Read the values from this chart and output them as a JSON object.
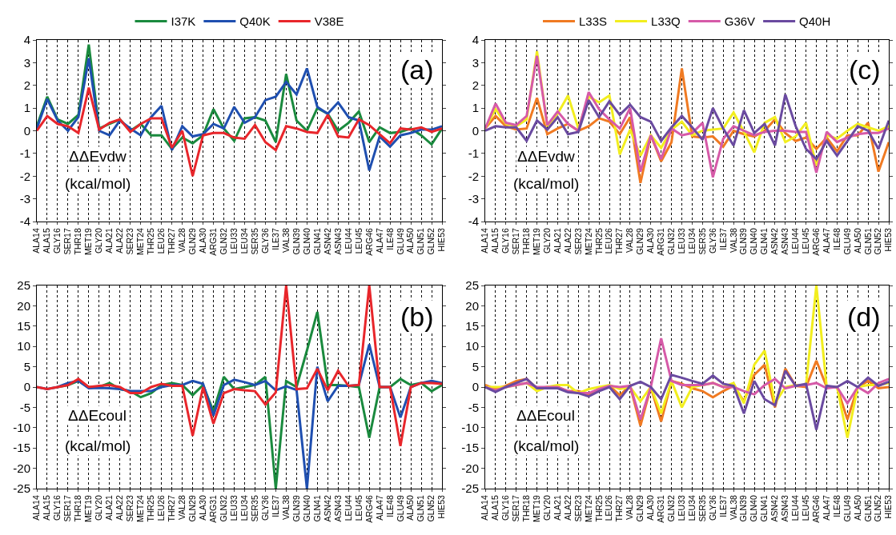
{
  "chart_data": [
    {
      "type": "line",
      "categories": [
        "ALA14",
        "ALA15",
        "GLY16",
        "SER17",
        "THR18",
        "MET19",
        "GLY20",
        "ALA21",
        "ALA22",
        "SER23",
        "MET24",
        "THR25",
        "LEU26",
        "THR27",
        "VAL28",
        "GLN29",
        "ALA30",
        "ARG31",
        "GLN32",
        "LEU33",
        "LEU34",
        "SER35",
        "GLY36",
        "ILE37",
        "VAL38",
        "GLN39",
        "GLN40",
        "GLN41",
        "ASN42",
        "ASN43",
        "LEU44",
        "LEU45",
        "ARG46",
        "ALA47",
        "ILE48",
        "GLU49",
        "ALA50",
        "GLN51",
        "GLN52",
        "HIE53"
      ],
      "ylim": [
        -4,
        4
      ],
      "yticks": [
        -4,
        -3,
        -2,
        -1,
        0,
        1,
        2,
        3,
        4
      ],
      "grid": "x",
      "legend": "top",
      "marker": "none",
      "line_style": "solid",
      "annotations": [
        "(a)",
        "ΔΔEvdw",
        "(kcal/mol)"
      ],
      "series": [
        {
          "name": "I37K",
          "color": "#1a8a3e",
          "values": [
            0.2,
            1.5,
            0.5,
            0.3,
            0.7,
            3.8,
            0.1,
            0.3,
            0.5,
            0.0,
            0.3,
            -0.2,
            -0.2,
            -0.8,
            -0.3,
            -0.55,
            -0.2,
            0.95,
            0.1,
            -0.45,
            0.55,
            0.6,
            0.45,
            -0.5,
            2.5,
            0.45,
            0.0,
            1.0,
            0.75,
            0.0,
            0.35,
            0.85,
            -0.5,
            0.15,
            -0.1,
            -0.05,
            0.1,
            -0.2,
            -0.6,
            0.1
          ]
        },
        {
          "name": "Q40K",
          "color": "#1f4fb0",
          "values": [
            0.1,
            1.4,
            0.45,
            0.0,
            0.6,
            3.2,
            0.0,
            -0.2,
            0.45,
            0.1,
            -0.2,
            0.6,
            1.1,
            -0.85,
            0.2,
            -0.25,
            -0.15,
            0.3,
            0.1,
            1.05,
            0.35,
            0.6,
            1.35,
            1.5,
            2.15,
            1.6,
            2.75,
            1.05,
            0.75,
            1.25,
            0.6,
            0.45,
            -1.75,
            -0.25,
            -0.7,
            -0.2,
            -0.1,
            0.05,
            0.05,
            0.2
          ]
        },
        {
          "name": "V38E",
          "color": "#e8262b",
          "values": [
            0.0,
            0.65,
            0.3,
            0.2,
            -0.1,
            1.9,
            0.05,
            0.35,
            0.5,
            -0.05,
            0.3,
            0.55,
            0.55,
            -0.75,
            0.0,
            -2.0,
            -0.2,
            -0.1,
            -0.1,
            -0.3,
            -0.35,
            0.25,
            -0.5,
            -0.85,
            0.2,
            0.1,
            -0.05,
            -0.1,
            0.7,
            -0.25,
            -0.3,
            0.5,
            0.25,
            -0.15,
            -0.55,
            0.1,
            0.05,
            0.15,
            -0.05,
            0.1
          ]
        }
      ]
    },
    {
      "type": "line",
      "categories": [
        "ALA14",
        "ALA15",
        "GLY16",
        "SER17",
        "THR18",
        "MET19",
        "GLY20",
        "ALA21",
        "ALA22",
        "SER23",
        "MET24",
        "THR25",
        "LEU26",
        "THR27",
        "VAL28",
        "GLN29",
        "ALA30",
        "ARG31",
        "GLN32",
        "LEU33",
        "LEU34",
        "SER35",
        "GLY36",
        "ILE37",
        "VAL38",
        "GLN39",
        "GLN40",
        "GLN41",
        "ASN42",
        "ASN43",
        "LEU44",
        "LEU45",
        "ARG46",
        "ALA47",
        "ILE48",
        "GLU49",
        "ALA50",
        "GLN51",
        "GLN52",
        "HIE53"
      ],
      "ylim": [
        -25,
        25
      ],
      "yticks": [
        -25,
        -20,
        -15,
        -10,
        -5,
        0,
        5,
        10,
        15,
        20,
        25
      ],
      "grid": "x",
      "marker": "none",
      "line_style": "solid",
      "annotations": [
        "(b)",
        "ΔΔEcoul",
        "(kcal/mol)"
      ],
      "series": [
        {
          "color": "#1a8a3e",
          "values": [
            null,
            null,
            0,
            0.5,
            1.5,
            0,
            0,
            1,
            -0.5,
            -1,
            -2.5,
            -1.5,
            0.5,
            1,
            0.5,
            -2,
            0.5,
            -6,
            2.5,
            -0.5,
            0,
            0.5,
            2.5,
            -25,
            1.5,
            0,
            9,
            18.5,
            0.5,
            0.5,
            0.3,
            0,
            -12.5,
            0,
            0,
            2,
            0.5,
            1,
            -1,
            0.5
          ]
        },
        {
          "color": "#1f4fb0",
          "values": [
            0,
            -0.5,
            0,
            1,
            1.5,
            -0.3,
            -0.2,
            -0.3,
            -0.5,
            -1,
            -1,
            -1,
            0,
            0.5,
            0.5,
            1.5,
            0.8,
            -7,
            0.5,
            1.8,
            1.2,
            0.5,
            1.5,
            -0.8,
            0.2,
            -0.7,
            -25,
            5,
            -3.5,
            0.3,
            0.3,
            0.5,
            10.5,
            0,
            0,
            -7.5,
            0,
            1,
            1.5,
            1
          ]
        },
        {
          "color": "#e8262b",
          "values": [
            0,
            -0.5,
            0,
            0.5,
            2,
            0,
            0.3,
            0.5,
            0,
            -1.5,
            -1.5,
            0,
            0.8,
            0.3,
            0.3,
            -12,
            0,
            -9,
            -1.5,
            -0.5,
            -0.8,
            -1,
            -4.3,
            -1.3,
            25,
            -0.5,
            -0.3,
            4.5,
            -0.8,
            4,
            0.3,
            0.5,
            25,
            0,
            0,
            -14.5,
            0,
            1,
            1,
            0.8
          ]
        }
      ]
    },
    {
      "type": "line",
      "categories": [
        "ALA14",
        "ALA15",
        "GLY16",
        "SER17",
        "THR18",
        "MET19",
        "GLY20",
        "ALA21",
        "ALA22",
        "SER23",
        "MET24",
        "THR25",
        "LEU26",
        "THR27",
        "VAL28",
        "GLN29",
        "ALA30",
        "ARG31",
        "GLN32",
        "LEU33",
        "LEU34",
        "SER35",
        "GLY36",
        "ILE37",
        "VAL38",
        "GLN39",
        "GLN40",
        "GLN41",
        "ASN42",
        "ASN43",
        "LEU44",
        "LEU45",
        "ARG46",
        "ALA47",
        "ILE48",
        "GLU49",
        "ALA50",
        "GLN51",
        "GLN52",
        "HIE53"
      ],
      "ylim": [
        -4,
        4
      ],
      "yticks": [
        -4,
        -3,
        -2,
        -1,
        0,
        1,
        2,
        3,
        4
      ],
      "grid": "x",
      "legend": "top",
      "marker": "none",
      "line_style": "solid",
      "annotations": [
        "(c)",
        "ΔΔEvdw",
        "(kcal/mol)"
      ],
      "series": [
        {
          "name": "L33S",
          "color": "#f07a22",
          "values": [
            0.1,
            0.65,
            0.2,
            0.05,
            0.1,
            1.45,
            -0.15,
            0.1,
            0.3,
            0.0,
            0.2,
            0.55,
            0.4,
            -0.15,
            0.6,
            -2.3,
            -0.2,
            -1.35,
            -0.5,
            2.75,
            -0.25,
            -0.3,
            -0.25,
            -0.7,
            0.0,
            -0.15,
            -0.25,
            0.0,
            0.5,
            -0.1,
            -0.45,
            -0.3,
            -0.8,
            -0.3,
            -0.9,
            -0.2,
            -0.2,
            0.35,
            -1.8,
            -0.5
          ]
        },
        {
          "name": "L33Q",
          "color": "#f2ee1e",
          "values": [
            0.1,
            0.95,
            0.3,
            0.2,
            0.5,
            3.5,
            0.2,
            0.75,
            1.55,
            0.1,
            1.5,
            1.25,
            1.55,
            -1.05,
            0.05,
            -1.1,
            -0.2,
            -0.75,
            0.05,
            0.4,
            -0.2,
            0.0,
            0.05,
            0.1,
            0.8,
            -0.05,
            -0.95,
            0.35,
            0.6,
            -0.5,
            -0.25,
            0.35,
            -1.55,
            -0.2,
            -0.35,
            0.0,
            0.3,
            0.15,
            0.0,
            0.2
          ]
        },
        {
          "name": "G36V",
          "color": "#d65aa8",
          "values": [
            0.1,
            1.2,
            0.35,
            0.25,
            0.65,
            3.3,
            0.25,
            0.85,
            0.3,
            0.0,
            1.7,
            0.95,
            0.5,
            0.1,
            1.0,
            -1.8,
            -0.2,
            -1.25,
            0.1,
            -0.2,
            -0.1,
            0.35,
            -2.05,
            -0.35,
            0.2,
            0.0,
            -0.2,
            -0.05,
            0.0,
            0.0,
            -0.05,
            -0.05,
            -1.85,
            -0.05,
            -0.5,
            -0.3,
            -0.15,
            -0.1,
            -0.1,
            0.1
          ]
        },
        {
          "name": "Q40H",
          "color": "#6a4aa0",
          "values": [
            0.0,
            0.2,
            0.15,
            0.15,
            -0.45,
            0.45,
            0.05,
            0.6,
            -0.15,
            -0.05,
            1.35,
            0.6,
            1.3,
            0.7,
            1.15,
            0.6,
            0.4,
            -0.45,
            0.15,
            0.65,
            0.15,
            -0.4,
            1.0,
            0.1,
            -0.65,
            0.9,
            -0.1,
            0.3,
            -0.65,
            1.6,
            0.2,
            -0.8,
            -1.25,
            -0.45,
            -1.1,
            -0.45,
            0.2,
            0.0,
            -0.8,
            0.45
          ]
        }
      ]
    },
    {
      "type": "line",
      "categories": [
        "ALA14",
        "ALA15",
        "GLY16",
        "SER17",
        "THR18",
        "MET19",
        "GLY20",
        "ALA21",
        "ALA22",
        "SER23",
        "MET24",
        "THR25",
        "LEU26",
        "THR27",
        "VAL28",
        "GLN29",
        "ALA30",
        "ARG31",
        "GLN32",
        "LEU33",
        "LEU34",
        "SER35",
        "GLY36",
        "ILE37",
        "VAL38",
        "GLN39",
        "GLN40",
        "GLN41",
        "ASN42",
        "ASN43",
        "LEU44",
        "LEU45",
        "ARG46",
        "ALA47",
        "ILE48",
        "GLU49",
        "ALA50",
        "GLN51",
        "GLN52",
        "HIE53"
      ],
      "ylim": [
        -25,
        25
      ],
      "yticks": [
        -25,
        -20,
        -15,
        -10,
        -5,
        0,
        5,
        10,
        15,
        20,
        25
      ],
      "grid": "x",
      "marker": "none",
      "line_style": "solid",
      "annotations": [
        "(d)",
        "ΔΔEcoul",
        "(kcal/mol)"
      ],
      "series": [
        {
          "color": "#f07a22",
          "values": [
            0.5,
            -0.5,
            0.3,
            1.5,
            2,
            -0.3,
            0,
            0,
            -1,
            -1,
            -1.8,
            -0.5,
            0.3,
            -2,
            0.3,
            -9.5,
            0,
            -8.5,
            1.5,
            0.8,
            -0.3,
            -1,
            -2.5,
            -1,
            0.3,
            -3.5,
            3,
            5.5,
            -5,
            4.5,
            0.3,
            0,
            6.5,
            0,
            0,
            -8,
            0,
            1.5,
            -0.3,
            0
          ]
        },
        {
          "color": "#f2ee1e",
          "values": [
            0,
            0,
            0,
            0.5,
            1,
            -1,
            0,
            0.5,
            0.5,
            -1.5,
            -0.5,
            0,
            0.5,
            -0.5,
            0,
            -3.5,
            0,
            -6.5,
            1.5,
            -5,
            0,
            0.5,
            1,
            0,
            1,
            -4,
            5.5,
            9,
            -4,
            0,
            0.5,
            0.5,
            25,
            0,
            0,
            -12.5,
            0,
            0.5,
            0.5,
            1
          ]
        },
        {
          "color": "#d65aa8",
          "values": [
            0,
            -0.8,
            0,
            0.5,
            1,
            0,
            0,
            0,
            -1,
            -1.5,
            -1.5,
            -0.5,
            0.3,
            0,
            0.3,
            -8,
            0,
            12,
            1.5,
            0.5,
            0.5,
            0.5,
            1,
            0,
            0,
            -1,
            -1.8,
            0.5,
            2,
            -0.3,
            0.3,
            0.5,
            1,
            -0.3,
            0,
            -4,
            0,
            -1.5,
            1,
            2
          ]
        },
        {
          "color": "#6a4aa0",
          "values": [
            0,
            -1.2,
            0,
            1,
            2,
            -0.3,
            -0.3,
            -0.3,
            -1.3,
            -1.5,
            -2.3,
            -1,
            0,
            -3,
            0.3,
            1.3,
            0,
            -3,
            3,
            2.3,
            1.5,
            0.8,
            2.8,
            0.8,
            0.3,
            -6.5,
            1.5,
            -3,
            -4.5,
            4,
            0.3,
            0.8,
            -10.5,
            0.3,
            0,
            1.5,
            0,
            2.3,
            0.3,
            1.3
          ]
        }
      ]
    }
  ]
}
